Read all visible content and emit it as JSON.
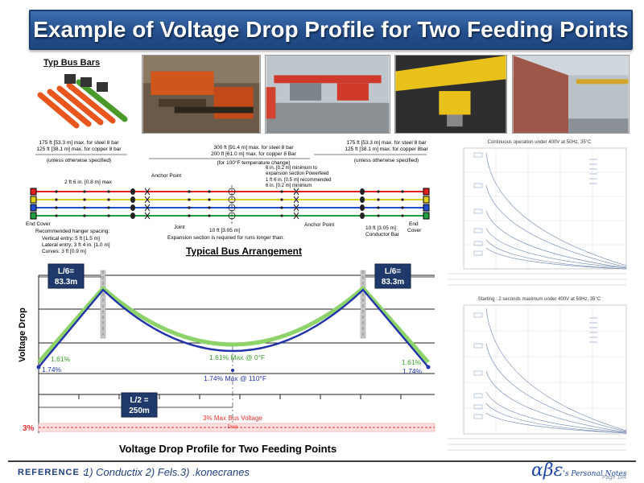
{
  "title": "Example of Voltage Drop Profile for Two Feeding Points",
  "photos": {
    "bus_bars_label": "Typ Bus Bars"
  },
  "arrangement": {
    "heading": "Typical Bus Arrangement",
    "left_top_1": "175 ft [53.3 m] max. for steel 8 bar",
    "left_top_2": "125 ft [38.1 m] max. for copper 8 bar",
    "left_top_3": "(unless otherwise specified)",
    "mid_top_1": "300 ft [91.4 m] max. for steel 8 bar",
    "mid_top_2": "200 ft [61.0 m] max. for copper 8 Bar",
    "mid_top_3": "(for 100°F temperature change)",
    "right_top_1": "175 ft [53.3 m] max. for steel 8 bar",
    "right_top_2": "125 ft [38.1 m] max. for copper 8bar",
    "right_top_3": "(unless otherwise specified)",
    "spacing_2ft": "2 ft 6 in. [0.8 m] max",
    "anchor_point_top": "Anchor Point",
    "exp_1": "6 in. [0.2 m] minimum to",
    "exp_2": "expansion section Powerfeed",
    "exp_3": "1 ft 6 in. [0.5 m] recommended",
    "exp_4": "6 in. [0.2 m] minimum",
    "end_cover_left": "End Cover",
    "hanger_title": "Recommended hanger spacing:",
    "hanger_vertical": "Vertical entry:   5 ft [1.5 m]",
    "hanger_lateral": "Lateral entry:   3 ft 4 in. [1.0 m]",
    "hanger_curves": "Curves:              3 ft [0.9 m]",
    "joint": "Joint",
    "ten_ft_mid": "10 ft [3.05 m]",
    "expansion_note": "Expansion section is required for runs  longer than:",
    "anchor_point_bottom": "Anchor Point",
    "ten_ft_right": "10 ft [3.05 m]",
    "conductor_bar": "Conductor Bar",
    "end_cover_right_1": "End",
    "end_cover_right_2": "Cover"
  },
  "profile": {
    "title": "Voltage Drop Profile for Two Feeding Points",
    "y_label": "Voltage Drop",
    "l6_left_1": "L/6=",
    "l6_left_2": "83.3m",
    "l6_right_1": "L/6=",
    "l6_right_2": "83.3m",
    "l2_1": "L/2 =",
    "l2_2": "250m",
    "green_left": "1.61%",
    "blue_left": "1.74%",
    "green_mid": "1.61% Max @ 0°F",
    "blue_mid": "1.74% Max @ 110°F",
    "green_right": "1.61%",
    "blue_right": "1.74%",
    "max_bus": "3% Max Bus Voltage",
    "max_bus_sub": "Drop",
    "three_pct": "3%",
    "colors": {
      "green": "#8dd36a",
      "blue": "#2233aa",
      "red": "#e83030"
    }
  },
  "charts": {
    "top_title": "Continuous operation under 400V at 50Hz, 35°C",
    "bottom_title": "Starting : 2 seconds maximum under 400V at 50Hz, 35°C"
  },
  "footer": {
    "reference": "REFERENCE :",
    "ref_items": "1) Conductix     2) Fels.3) .konecranes",
    "brand_mark": "αβε",
    "brand_text": "'s Personal Notes",
    "page": "Page 184"
  }
}
